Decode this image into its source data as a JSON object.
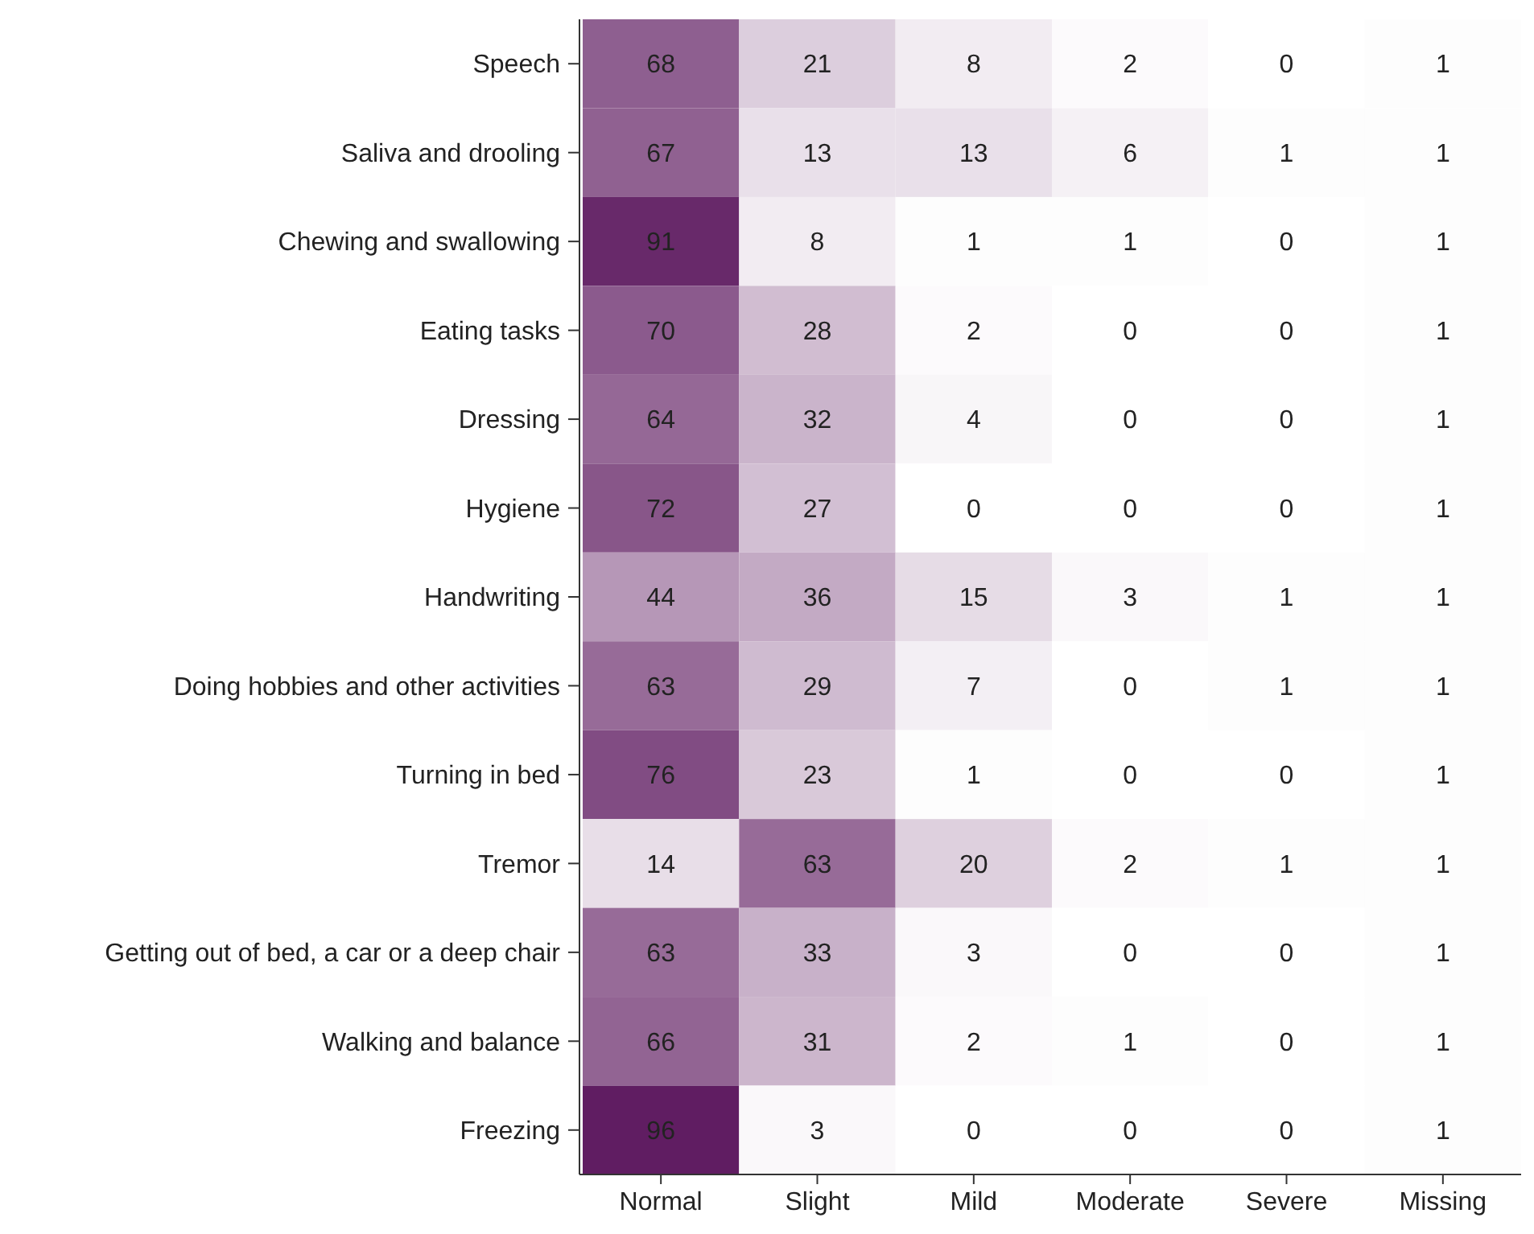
{
  "chart_data": {
    "type": "heatmap",
    "categories": [
      "Normal",
      "Slight",
      "Mild",
      "Moderate",
      "Severe",
      "Missing"
    ],
    "y_categories": [
      "Speech",
      "Saliva and drooling",
      "Chewing and swallowing",
      "Eating tasks",
      "Dressing",
      "Hygiene",
      "Handwriting",
      "Doing hobbies and other activities",
      "Turning in bed",
      "Tremor",
      "Getting out of bed, a car or a deep chair",
      "Walking and balance",
      "Freezing"
    ],
    "cells": [
      [
        68,
        21,
        8,
        2,
        0,
        1
      ],
      [
        67,
        13,
        13,
        6,
        1,
        1
      ],
      [
        91,
        8,
        1,
        1,
        0,
        1
      ],
      [
        70,
        28,
        2,
        0,
        0,
        1
      ],
      [
        64,
        32,
        4,
        0,
        0,
        1
      ],
      [
        72,
        27,
        0,
        0,
        0,
        1
      ],
      [
        44,
        36,
        15,
        3,
        1,
        1
      ],
      [
        63,
        29,
        7,
        0,
        1,
        1
      ],
      [
        76,
        23,
        1,
        0,
        0,
        1
      ],
      [
        14,
        63,
        20,
        2,
        1,
        1
      ],
      [
        63,
        33,
        3,
        0,
        0,
        1
      ],
      [
        66,
        31,
        2,
        1,
        0,
        1
      ],
      [
        96,
        3,
        0,
        0,
        0,
        1
      ]
    ],
    "data_labels": true
  }
}
